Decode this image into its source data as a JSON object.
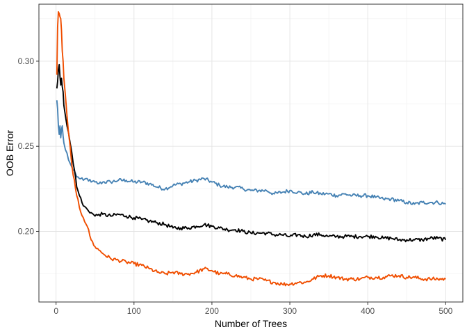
{
  "chart_data": {
    "type": "line",
    "title": "",
    "xlabel": "Number of Trees",
    "ylabel": "OOB Error",
    "xlim": [
      -22,
      522
    ],
    "ylim": [
      0.1585,
      0.3335
    ],
    "x_ticks": [
      0,
      100,
      200,
      300,
      400,
      500
    ],
    "x_tick_labels": [
      "0",
      "100",
      "200",
      "300",
      "400",
      "500"
    ],
    "y_ticks": [
      0.2,
      0.25,
      0.3
    ],
    "y_tick_labels": [
      "0.20",
      "0.25",
      "0.30"
    ],
    "grid": true,
    "legend": "none",
    "series": [
      {
        "color": "#4682B4",
        "x": [
          1,
          2,
          3,
          4,
          5,
          6,
          7,
          8,
          9,
          10,
          12,
          14,
          16,
          18,
          20,
          22,
          25,
          28,
          30,
          35,
          40,
          45,
          50,
          55,
          60,
          70,
          80,
          90,
          100,
          110,
          120,
          130,
          140,
          150,
          160,
          170,
          180,
          190,
          200,
          210,
          220,
          230,
          240,
          250,
          260,
          270,
          280,
          290,
          300,
          310,
          320,
          330,
          340,
          350,
          360,
          370,
          380,
          390,
          400,
          410,
          420,
          430,
          440,
          450,
          460,
          470,
          480,
          490,
          500
        ],
        "y": [
          0.277,
          0.272,
          0.262,
          0.257,
          0.262,
          0.255,
          0.26,
          0.262,
          0.256,
          0.252,
          0.248,
          0.246,
          0.242,
          0.24,
          0.238,
          0.236,
          0.234,
          0.232,
          0.231,
          0.23,
          0.231,
          0.229,
          0.229,
          0.228,
          0.229,
          0.229,
          0.23,
          0.23,
          0.229,
          0.229,
          0.228,
          0.226,
          0.225,
          0.227,
          0.228,
          0.229,
          0.23,
          0.231,
          0.229,
          0.227,
          0.226,
          0.226,
          0.225,
          0.224,
          0.224,
          0.224,
          0.222,
          0.223,
          0.224,
          0.223,
          0.222,
          0.223,
          0.222,
          0.222,
          0.221,
          0.222,
          0.221,
          0.221,
          0.221,
          0.22,
          0.219,
          0.219,
          0.218,
          0.217,
          0.216,
          0.217,
          0.217,
          0.217,
          0.216
        ]
      },
      {
        "color": "#000000",
        "x": [
          1,
          2,
          3,
          4,
          5,
          6,
          7,
          8,
          9,
          10,
          12,
          14,
          16,
          18,
          20,
          22,
          25,
          28,
          30,
          35,
          40,
          45,
          50,
          55,
          60,
          70,
          80,
          90,
          100,
          110,
          120,
          130,
          140,
          150,
          160,
          170,
          180,
          190,
          200,
          210,
          220,
          230,
          240,
          250,
          260,
          270,
          280,
          290,
          300,
          310,
          320,
          330,
          340,
          350,
          360,
          370,
          380,
          390,
          400,
          410,
          420,
          430,
          440,
          450,
          460,
          470,
          480,
          490,
          500
        ],
        "y": [
          0.284,
          0.288,
          0.295,
          0.298,
          0.291,
          0.286,
          0.29,
          0.285,
          0.282,
          0.274,
          0.268,
          0.262,
          0.258,
          0.252,
          0.247,
          0.24,
          0.232,
          0.224,
          0.221,
          0.215,
          0.213,
          0.211,
          0.209,
          0.21,
          0.21,
          0.209,
          0.21,
          0.209,
          0.208,
          0.207,
          0.206,
          0.205,
          0.204,
          0.202,
          0.202,
          0.202,
          0.203,
          0.204,
          0.203,
          0.202,
          0.201,
          0.201,
          0.2,
          0.199,
          0.199,
          0.199,
          0.198,
          0.198,
          0.197,
          0.198,
          0.197,
          0.198,
          0.198,
          0.197,
          0.197,
          0.197,
          0.197,
          0.197,
          0.197,
          0.197,
          0.196,
          0.196,
          0.195,
          0.195,
          0.195,
          0.195,
          0.196,
          0.196,
          0.195
        ]
      },
      {
        "color": "#F04E00",
        "x": [
          1,
          2,
          3,
          4,
          5,
          6,
          7,
          8,
          9,
          10,
          12,
          14,
          16,
          18,
          20,
          22,
          25,
          28,
          30,
          35,
          40,
          45,
          50,
          55,
          60,
          70,
          80,
          90,
          100,
          110,
          120,
          130,
          140,
          150,
          160,
          170,
          180,
          190,
          200,
          210,
          220,
          230,
          240,
          250,
          260,
          270,
          280,
          290,
          300,
          310,
          320,
          330,
          340,
          350,
          360,
          370,
          380,
          390,
          400,
          410,
          420,
          430,
          440,
          450,
          460,
          470,
          480,
          490,
          500
        ],
        "y": [
          0.292,
          0.32,
          0.329,
          0.328,
          0.326,
          0.325,
          0.318,
          0.306,
          0.3,
          0.29,
          0.28,
          0.268,
          0.258,
          0.25,
          0.24,
          0.233,
          0.225,
          0.219,
          0.214,
          0.208,
          0.203,
          0.195,
          0.191,
          0.189,
          0.187,
          0.184,
          0.183,
          0.182,
          0.181,
          0.18,
          0.178,
          0.176,
          0.175,
          0.176,
          0.175,
          0.175,
          0.176,
          0.178,
          0.177,
          0.175,
          0.175,
          0.174,
          0.173,
          0.172,
          0.172,
          0.171,
          0.17,
          0.169,
          0.169,
          0.17,
          0.17,
          0.172,
          0.174,
          0.174,
          0.173,
          0.172,
          0.172,
          0.172,
          0.173,
          0.173,
          0.173,
          0.174,
          0.174,
          0.173,
          0.173,
          0.172,
          0.172,
          0.172,
          0.172
        ]
      }
    ]
  }
}
